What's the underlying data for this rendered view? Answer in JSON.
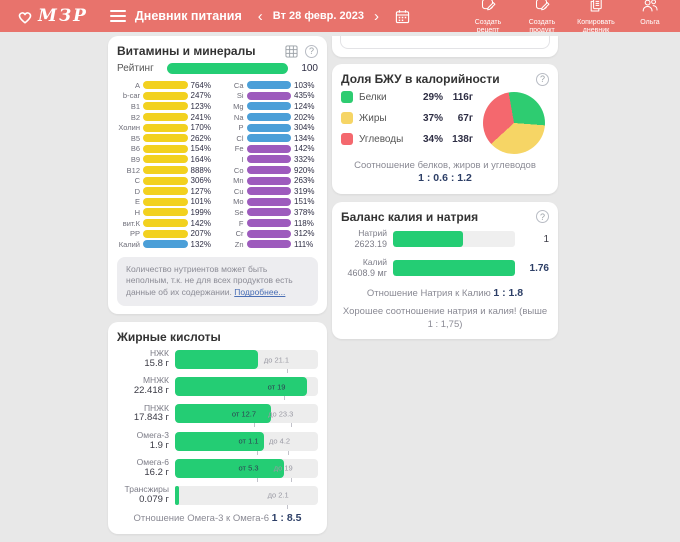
{
  "header": {
    "logo_text": "МЗР",
    "menu_title": "Дневник питания",
    "prev_icon": "‹",
    "next_icon": "›",
    "date": "Вт 28 февр. 2023",
    "actions": [
      {
        "line1": "Создать",
        "line2": "рецепт"
      },
      {
        "line1": "Создать",
        "line2": "продукт"
      },
      {
        "line1": "Копировать",
        "line2": "дневник"
      }
    ],
    "user_name": "Ольга"
  },
  "colors": {
    "yellow": "#f2d11f",
    "blue": "#4b9fd8",
    "purple": "#9d5bbd",
    "green": "#24cd74",
    "header_bg": "#e8736c"
  },
  "icons": {
    "question": "?"
  },
  "vitamins": {
    "title": "Витамины и минералы",
    "rating_label": "Рейтинг",
    "rating_value": "100",
    "left": [
      {
        "n": "А",
        "p": "764%",
        "c": "yellow"
      },
      {
        "n": "b-car",
        "p": "247%",
        "c": "yellow"
      },
      {
        "n": "В1",
        "p": "123%",
        "c": "yellow"
      },
      {
        "n": "В2",
        "p": "241%",
        "c": "yellow"
      },
      {
        "n": "Холин",
        "p": "170%",
        "c": "yellow"
      },
      {
        "n": "В5",
        "p": "262%",
        "c": "yellow"
      },
      {
        "n": "В6",
        "p": "154%",
        "c": "yellow"
      },
      {
        "n": "В9",
        "p": "164%",
        "c": "yellow"
      },
      {
        "n": "В12",
        "p": "888%",
        "c": "yellow"
      },
      {
        "n": "С",
        "p": "306%",
        "c": "yellow"
      },
      {
        "n": "D",
        "p": "127%",
        "c": "yellow"
      },
      {
        "n": "Е",
        "p": "101%",
        "c": "yellow"
      },
      {
        "n": "Н",
        "p": "199%",
        "c": "yellow"
      },
      {
        "n": "вит.К",
        "p": "142%",
        "c": "yellow"
      },
      {
        "n": "РР",
        "p": "207%",
        "c": "yellow"
      },
      {
        "n": "Калий",
        "p": "132%",
        "c": "blue"
      }
    ],
    "right": [
      {
        "n": "Ca",
        "p": "103%",
        "c": "blue"
      },
      {
        "n": "Si",
        "p": "435%",
        "c": "purple"
      },
      {
        "n": "Mg",
        "p": "124%",
        "c": "blue"
      },
      {
        "n": "Na",
        "p": "202%",
        "c": "blue"
      },
      {
        "n": "P",
        "p": "304%",
        "c": "blue"
      },
      {
        "n": "Cl",
        "p": "134%",
        "c": "blue"
      },
      {
        "n": "Fe",
        "p": "142%",
        "c": "purple"
      },
      {
        "n": "I",
        "p": "332%",
        "c": "purple"
      },
      {
        "n": "Co",
        "p": "920%",
        "c": "purple"
      },
      {
        "n": "Mn",
        "p": "263%",
        "c": "purple"
      },
      {
        "n": "Cu",
        "p": "319%",
        "c": "purple"
      },
      {
        "n": "Mo",
        "p": "151%",
        "c": "purple"
      },
      {
        "n": "Se",
        "p": "378%",
        "c": "purple"
      },
      {
        "n": "F",
        "p": "118%",
        "c": "purple"
      },
      {
        "n": "Cr",
        "p": "312%",
        "c": "purple"
      },
      {
        "n": "Zn",
        "p": "111%",
        "c": "purple"
      }
    ],
    "note": "Количество нутриентов может быть неполным, т.к. не для всех продуктов есть данные об их содержании.",
    "note_link": "Подробнее..."
  },
  "fatty_acids": {
    "title": "Жирные кислоты",
    "rows": [
      {
        "name": "НЖК",
        "value": "15.8 г",
        "fill": 58,
        "markers": [
          {
            "t": "до 21.1",
            "pos": 78,
            "on": "track"
          }
        ]
      },
      {
        "name": "МНЖК",
        "value": "22.418 г",
        "fill": 92,
        "markers": [
          {
            "t": "от 19",
            "pos": 76,
            "on": "fill"
          }
        ]
      },
      {
        "name": "ПНЖК",
        "value": "17.843 г",
        "fill": 67,
        "markers": [
          {
            "t": "от 12.7",
            "pos": 55,
            "on": "fill"
          },
          {
            "t": "до 23.3",
            "pos": 81,
            "on": "track"
          }
        ]
      },
      {
        "name": "Омега-3",
        "value": "1.9 г",
        "fill": 62,
        "markers": [
          {
            "t": "от 1.1",
            "pos": 57,
            "on": "fill"
          },
          {
            "t": "до 4.2",
            "pos": 79,
            "on": "track"
          }
        ]
      },
      {
        "name": "Омега-6",
        "value": "16.2 г",
        "fill": 76,
        "markers": [
          {
            "t": "от 5.3",
            "pos": 57,
            "on": "fill"
          },
          {
            "t": "до 19",
            "pos": 81,
            "on": "track"
          }
        ]
      },
      {
        "name": "Трансжиры",
        "value": "0.079 г",
        "fill": 3,
        "markers": [
          {
            "t": "до 2.1",
            "pos": 78,
            "on": "track"
          }
        ]
      }
    ],
    "footer_label": "Отношение Омега-3 к Омега-6",
    "footer_value": "1 : 8.5"
  },
  "bju": {
    "title": "Доля БЖУ в калорийности",
    "legend": [
      {
        "name": "Белки",
        "pct": "29%",
        "grams": "116г",
        "color": "#2ecc71"
      },
      {
        "name": "Жиры",
        "pct": "37%",
        "grams": "67г",
        "color": "#f6d565"
      },
      {
        "name": "Углеводы",
        "pct": "34%",
        "grams": "138г",
        "color": "#f4686e"
      }
    ],
    "footer_label": "Соотношение белков, жиров и углеводов",
    "footer_value": "1 : 0.6 : 1.2"
  },
  "balance": {
    "title": "Баланс калия и натрия",
    "rows": [
      {
        "name": "Натрий",
        "value": "2623.19",
        "fill": 57,
        "ratio": "1",
        "em": false
      },
      {
        "name": "Калий",
        "value": "4608.9 мг",
        "fill": 100,
        "ratio": "1.76",
        "em": true
      }
    ],
    "ratio_label": "Отношение Натрия к Калию",
    "ratio_value": "1 : 1.8",
    "note": "Хорошее соотношение натрия и калия! (выше 1 : 1,75)"
  },
  "chart_data": [
    {
      "type": "pie",
      "title": "Доля БЖУ в калорийности",
      "labels": [
        "Белки",
        "Жиры",
        "Углеводы"
      ],
      "values_pct": [
        29,
        37,
        34
      ],
      "values_g": [
        116,
        67,
        138
      ],
      "colors": [
        "#2ecc71",
        "#f6d565",
        "#f4686e"
      ],
      "annotation": "Соотношение белков, жиров и углеводов 1 : 0.6 : 1.2",
      "legend_position": "left"
    },
    {
      "type": "bar",
      "title": "Баланс калия и натрия",
      "categories": [
        "Натрий",
        "Калий"
      ],
      "values": [
        2623.19,
        4608.9
      ],
      "unit": "мг",
      "normalized": [
        1,
        1.76
      ],
      "annotation": "Отношение Натрия к Калию 1 : 1.8"
    }
  ]
}
